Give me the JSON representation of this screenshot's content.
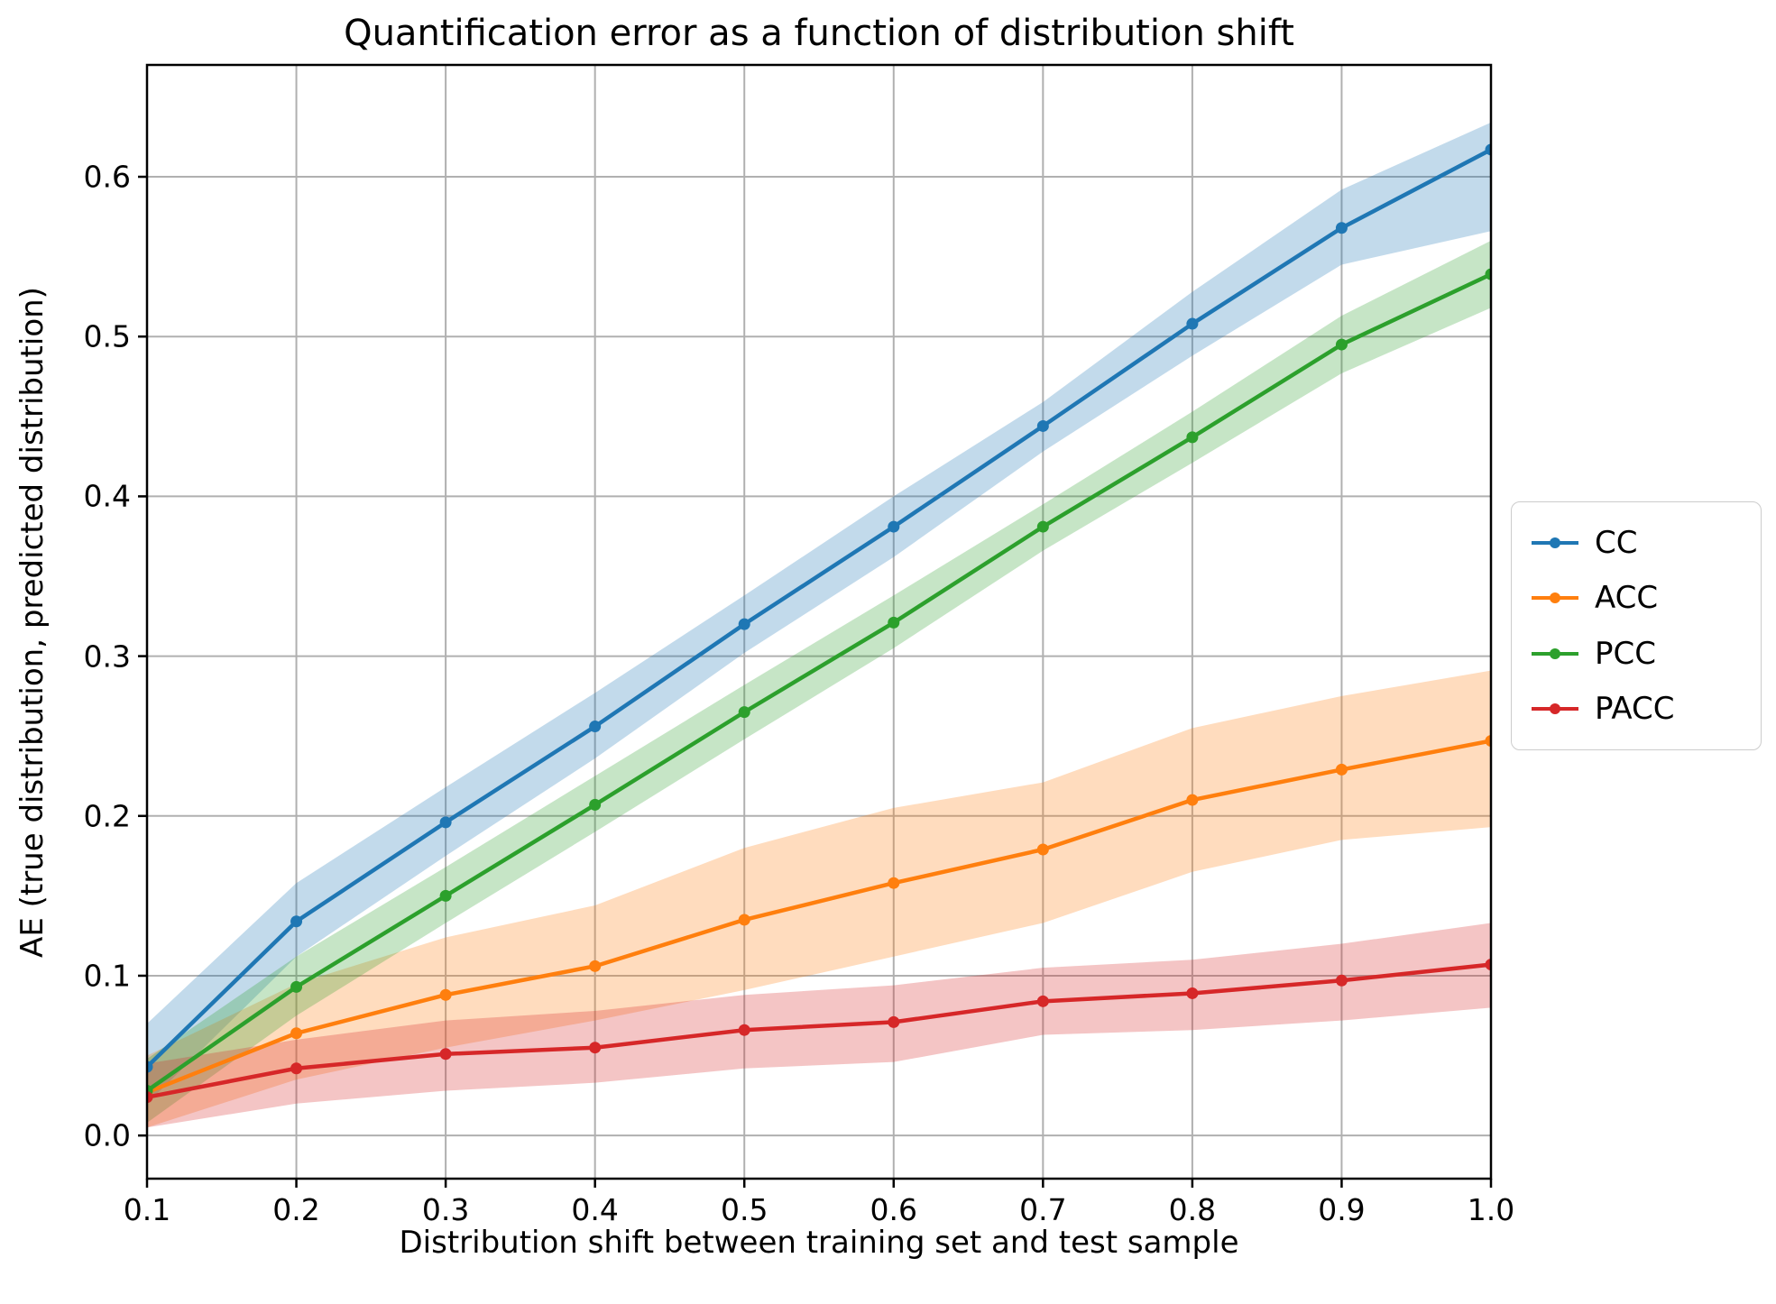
{
  "figure": {
    "background": "#ffffff",
    "grid_color": "#b0b0b0",
    "spine_color": "#000000",
    "band_opacity": 0.27
  },
  "chart_data": {
    "type": "line",
    "title": "Quantification error as a function of distribution shift",
    "xlabel": "Distribution shift between training set and test sample",
    "ylabel": "AE (true distribution, predicted distribution)",
    "x": [
      0.1,
      0.2,
      0.3,
      0.4,
      0.5,
      0.6,
      0.7,
      0.8,
      0.9,
      1.0
    ],
    "xlim": [
      0.1,
      1.0
    ],
    "ylim": [
      -0.027,
      0.67
    ],
    "xticks": [
      0.1,
      0.2,
      0.3,
      0.4,
      0.5,
      0.6,
      0.7,
      0.8,
      0.9,
      1.0
    ],
    "yticks": [
      0.0,
      0.1,
      0.2,
      0.3,
      0.4,
      0.5,
      0.6
    ],
    "grid": true,
    "legend_position": "outside center right",
    "series": [
      {
        "name": "CC",
        "color": "#1f77b4",
        "values": [
          0.043,
          0.134,
          0.196,
          0.256,
          0.32,
          0.381,
          0.444,
          0.508,
          0.568,
          0.617
        ],
        "band_lower": [
          0.02,
          0.112,
          0.175,
          0.236,
          0.302,
          0.362,
          0.428,
          0.488,
          0.545,
          0.566
        ],
        "band_upper": [
          0.07,
          0.158,
          0.218,
          0.277,
          0.338,
          0.4,
          0.459,
          0.528,
          0.592,
          0.634
        ]
      },
      {
        "name": "ACC",
        "color": "#ff7f0e",
        "values": [
          0.027,
          0.064,
          0.088,
          0.106,
          0.135,
          0.158,
          0.179,
          0.21,
          0.229,
          0.247
        ],
        "band_lower": [
          0.005,
          0.035,
          0.055,
          0.072,
          0.091,
          0.112,
          0.133,
          0.165,
          0.185,
          0.193
        ],
        "band_upper": [
          0.05,
          0.095,
          0.124,
          0.144,
          0.18,
          0.205,
          0.221,
          0.255,
          0.275,
          0.291
        ]
      },
      {
        "name": "PCC",
        "color": "#2ca02c",
        "values": [
          0.028,
          0.093,
          0.15,
          0.207,
          0.265,
          0.321,
          0.381,
          0.437,
          0.495,
          0.539
        ],
        "band_lower": [
          0.008,
          0.075,
          0.133,
          0.19,
          0.248,
          0.305,
          0.366,
          0.421,
          0.477,
          0.518
        ],
        "band_upper": [
          0.048,
          0.112,
          0.168,
          0.225,
          0.282,
          0.338,
          0.395,
          0.453,
          0.513,
          0.56
        ]
      },
      {
        "name": "PACC",
        "color": "#d62728",
        "values": [
          0.024,
          0.042,
          0.051,
          0.055,
          0.066,
          0.071,
          0.084,
          0.089,
          0.097,
          0.107
        ],
        "band_lower": [
          0.005,
          0.02,
          0.028,
          0.033,
          0.042,
          0.046,
          0.063,
          0.066,
          0.072,
          0.08
        ],
        "band_upper": [
          0.045,
          0.06,
          0.072,
          0.078,
          0.088,
          0.094,
          0.105,
          0.11,
          0.12,
          0.133
        ]
      }
    ]
  }
}
